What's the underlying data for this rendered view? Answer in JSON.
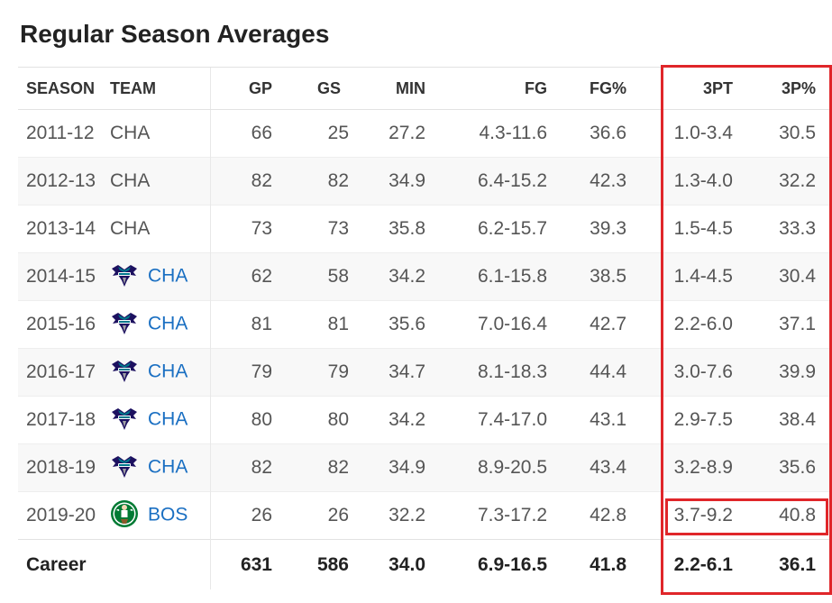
{
  "page": {
    "title": "Regular Season Averages"
  },
  "columns": [
    "SEASON",
    "TEAM",
    "GP",
    "GS",
    "MIN",
    "FG",
    "FG%",
    "3PT",
    "3P%"
  ],
  "rows": [
    {
      "season": "2011-12",
      "team": "CHA",
      "logo": "",
      "gp": "66",
      "gs": "25",
      "min": "27.2",
      "fg": "4.3-11.6",
      "fgp": "36.6",
      "tpt": "1.0-3.4",
      "tpp": "30.5"
    },
    {
      "season": "2012-13",
      "team": "CHA",
      "logo": "",
      "gp": "82",
      "gs": "82",
      "min": "34.9",
      "fg": "6.4-15.2",
      "fgp": "42.3",
      "tpt": "1.3-4.0",
      "tpp": "32.2"
    },
    {
      "season": "2013-14",
      "team": "CHA",
      "logo": "",
      "gp": "73",
      "gs": "73",
      "min": "35.8",
      "fg": "6.2-15.7",
      "fgp": "39.3",
      "tpt": "1.5-4.5",
      "tpp": "33.3"
    },
    {
      "season": "2014-15",
      "team": "CHA",
      "logo": "hornets-logo-icon",
      "gp": "62",
      "gs": "58",
      "min": "34.2",
      "fg": "6.1-15.8",
      "fgp": "38.5",
      "tpt": "1.4-4.5",
      "tpp": "30.4"
    },
    {
      "season": "2015-16",
      "team": "CHA",
      "logo": "hornets-logo-icon",
      "gp": "81",
      "gs": "81",
      "min": "35.6",
      "fg": "7.0-16.4",
      "fgp": "42.7",
      "tpt": "2.2-6.0",
      "tpp": "37.1"
    },
    {
      "season": "2016-17",
      "team": "CHA",
      "logo": "hornets-logo-icon",
      "gp": "79",
      "gs": "79",
      "min": "34.7",
      "fg": "8.1-18.3",
      "fgp": "44.4",
      "tpt": "3.0-7.6",
      "tpp": "39.9"
    },
    {
      "season": "2017-18",
      "team": "CHA",
      "logo": "hornets-logo-icon",
      "gp": "80",
      "gs": "80",
      "min": "34.2",
      "fg": "7.4-17.0",
      "fgp": "43.1",
      "tpt": "2.9-7.5",
      "tpp": "38.4"
    },
    {
      "season": "2018-19",
      "team": "CHA",
      "logo": "hornets-logo-icon",
      "gp": "82",
      "gs": "82",
      "min": "34.9",
      "fg": "8.9-20.5",
      "fgp": "43.4",
      "tpt": "3.2-8.9",
      "tpp": "35.6"
    },
    {
      "season": "2019-20",
      "team": "BOS",
      "logo": "celtics-logo-icon",
      "gp": "26",
      "gs": "26",
      "min": "32.2",
      "fg": "7.3-17.2",
      "fgp": "42.8",
      "tpt": "3.7-9.2",
      "tpp": "40.8"
    }
  ],
  "career": {
    "label": "Career",
    "gp": "631",
    "gs": "586",
    "min": "34.0",
    "fg": "6.9-16.5",
    "fgp": "41.8",
    "tpt": "2.2-6.1",
    "tpp": "36.1"
  },
  "colors": {
    "highlight": "#e0262a",
    "link": "#1a6fc2",
    "hornets_purple": "#1d1160",
    "hornets_teal": "#00788c",
    "celtics_green": "#007a33"
  }
}
